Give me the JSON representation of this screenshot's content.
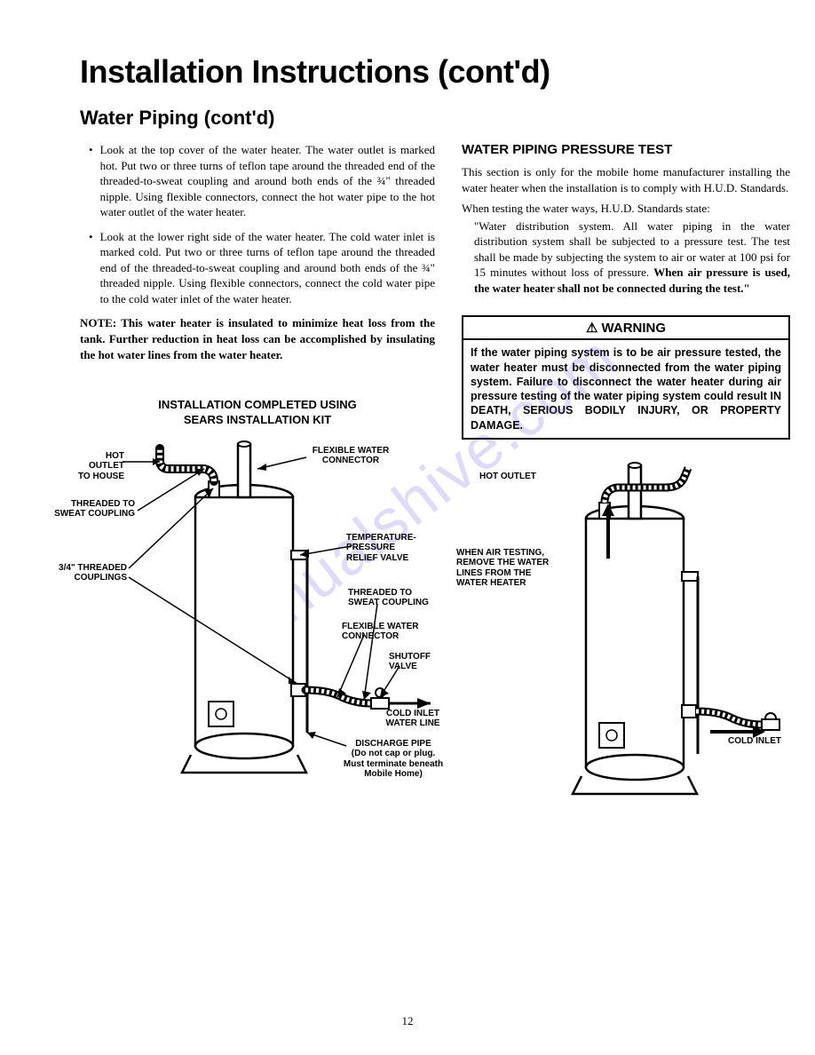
{
  "title": "Installation Instructions (cont'd)",
  "section": "Water Piping (cont'd)",
  "left": {
    "bullets": [
      "Look at the top cover of the water heater. The water outlet is marked hot. Put two or three turns of teflon tape around the threaded end of the threaded-to-sweat coupling and around both ends of the ¾\" threaded nipple. Using flexible connectors, connect the hot water pipe to the hot water outlet of the water heater.",
      "Look at the lower right side of the water heater. The cold water inlet is marked cold. Put two or three turns of teflon tape around the threaded end of the threaded-to-sweat coupling and around both ends of the ¾\" threaded nipple. Using flexible connectors, connect the cold water pipe to the cold water inlet of the water heater."
    ],
    "note": "NOTE: This water heater is insulated to minimize heat loss from the tank. Further reduction in heat loss can be accomplished by insulating the hot water lines from the water heater.",
    "diagram_title_l1": "INSTALLATION COMPLETED USING",
    "diagram_title_l2": "SEARS INSTALLATION KIT",
    "labels": {
      "hot_outlet": "HOT OUTLET\nTO HOUSE",
      "threaded_sweat": "THREADED TO\nSWEAT COUPLING",
      "couplings": "3/4\" THREADED\nCOUPLINGS",
      "flex_conn_top": "FLEXIBLE WATER\nCONNECTOR",
      "tprv": "TEMPERATURE-\nPRESSURE\nRELIEF VALVE",
      "threaded_sweat2": "THREADED TO\nSWEAT COUPLING",
      "flex_conn2": "FLEXIBLE WATER\nCONNECTOR",
      "shutoff": "SHUTOFF\nVALVE",
      "cold_inlet": "COLD INLET\nWATER LINE",
      "discharge": "DISCHARGE PIPE\n(Do not cap or plug.\nMust terminate beneath\nMobile Home)"
    }
  },
  "right": {
    "heading": "WATER PIPING PRESSURE TEST",
    "p1": "This section is only for the mobile home manufacturer installing the water heater when the installation is to comply with H.U.D. Standards.",
    "p2": "When testing the water ways, H.U.D. Standards state:",
    "quote_plain": "\"Water distribution system. All water piping in the water distribution system shall be subjected to a pressure test. The test shall be made by subjecting the system to air or water at 100 psi for 15 minutes without loss of pressure. ",
    "quote_bold": "When air pressure is used, the water heater shall not be connected during the test.\"",
    "warning_head": "⚠ WARNING",
    "warning_body": "If the water piping system is to be air pressure tested, the water heater must be disconnected from the water piping system. Failure to disconnect the water heater during air pressure testing of the water piping system could result IN DEATH, SERIOUS BODILY INJURY, OR PROPERTY DAMAGE.",
    "labels": {
      "hot_outlet": "HOT OUTLET",
      "remove": "WHEN AIR TESTING,\nREMOVE THE WATER\nLINES FROM THE\nWATER HEATER",
      "cold_inlet": "COLD INLET"
    }
  },
  "page_number": "12",
  "watermark": "manualshive.com",
  "colors": {
    "text": "#000000",
    "bg": "#ffffff",
    "watermark": "rgba(100,90,220,0.22)"
  }
}
